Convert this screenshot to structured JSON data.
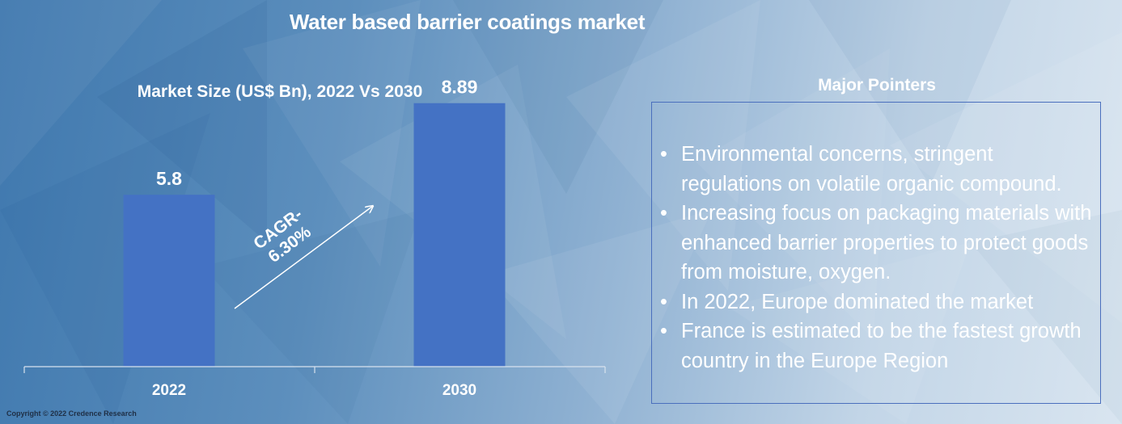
{
  "title": "Water based barrier coatings market",
  "chart_data": {
    "type": "bar",
    "title": "Market Size (US$ Bn), 2022 Vs 2030",
    "categories": [
      "2022",
      "2030"
    ],
    "values": [
      5.8,
      8.89
    ],
    "value_labels": [
      "5.8",
      "8.89"
    ],
    "ylim": [
      0,
      10
    ],
    "xlabel": "",
    "ylabel": "",
    "grid": false,
    "bar_color": "#4472c4",
    "annotation": {
      "line1": "CAGR-",
      "line2": "6.30%"
    }
  },
  "pointers": {
    "title": "Major Pointers",
    "items": [
      "Environmental concerns, stringent regulations on volatile organic compound.",
      "Increasing focus on packaging materials with enhanced barrier properties to protect goods from moisture, oxygen.",
      "In 2022, Europe dominated the market",
      "France is estimated to be the fastest growth country in the Europe Region"
    ]
  },
  "copyright": "Copyright © 2022 Credence Research"
}
